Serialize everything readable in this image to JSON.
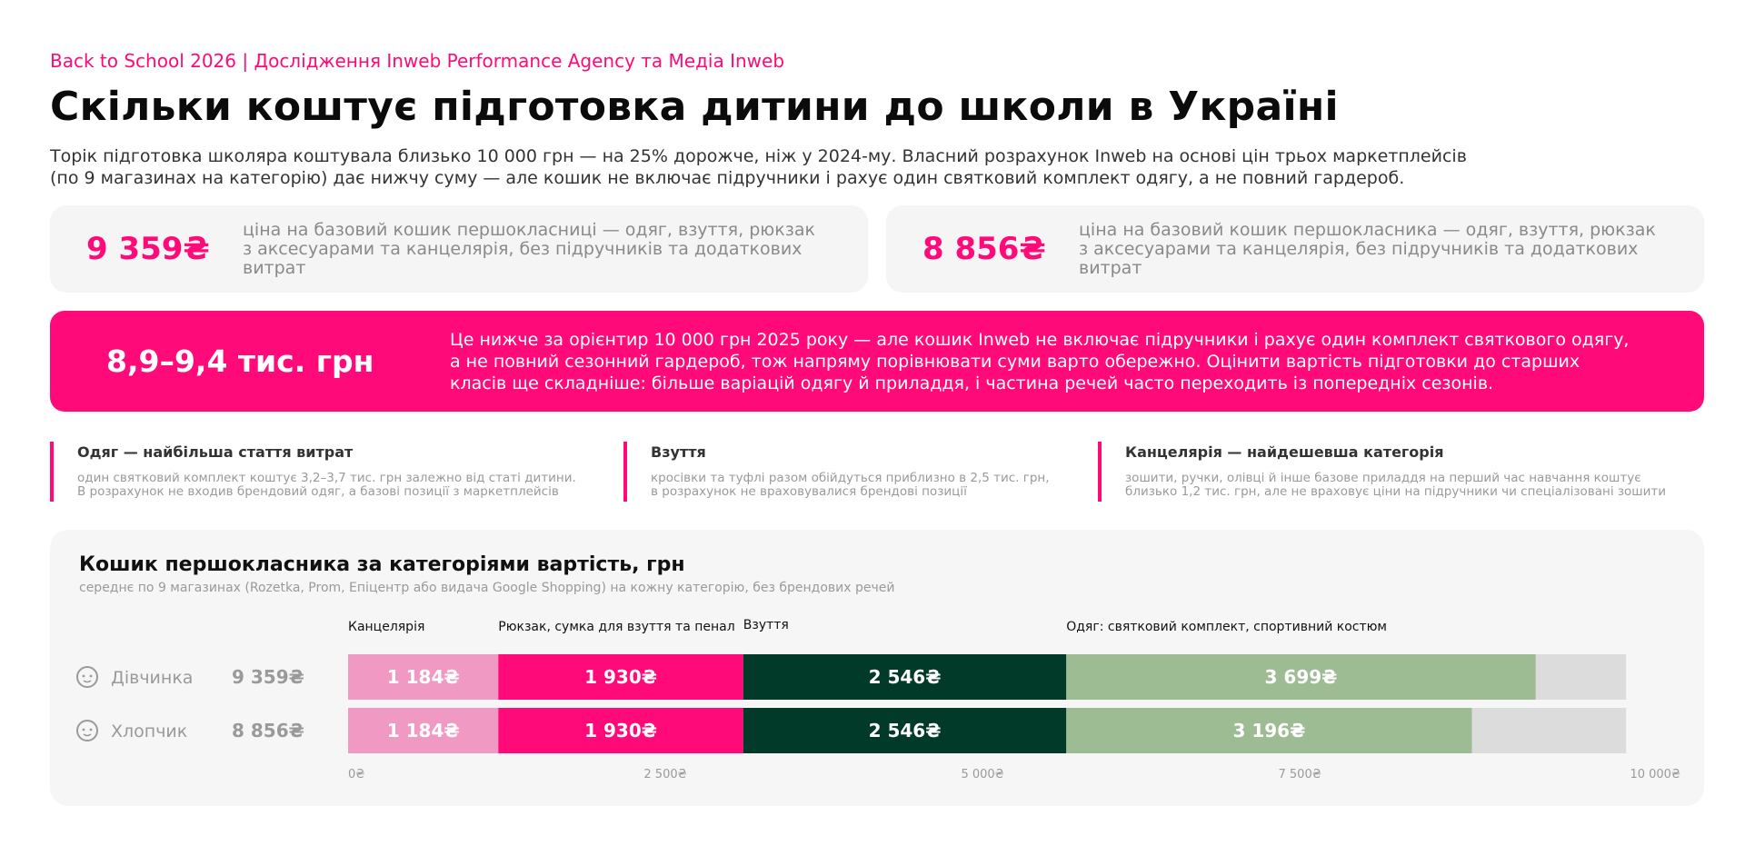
{
  "header": {
    "eyebrow": "Back to School 2026 | Дослідження Inweb Performance Agency та Медіа Inweb",
    "title": "Скільки коштує підготовка дитини до школи в Україні",
    "intro_line1": "Торік підготовка школяра коштувала близько 10 000 грн — на 25% дорожче, ніж у 2024-му. Власний розрахунок Inweb на основі цін трьох маркетплейсів",
    "intro_line2": "(по 9 магазинах на категорію) дає нижчу суму — але кошик не включає підручники і рахує один святковий комплект одягу, а не повний гардероб."
  },
  "kpis": {
    "girl": {
      "value": "9 359₴",
      "desc_line1": "ціна на базовий кошик першокласниці — одяг, взуття, рюкзак",
      "desc_line2": "з аксесуарами та канцелярія, без підручників та додаткових витрат"
    },
    "boy": {
      "value": "8 856₴",
      "desc_line1": "ціна на базовий кошик першокласника — одяг, взуття, рюкзак",
      "desc_line2": "з аксесуарами та канцелярія, без підручників та додаткових витрат"
    }
  },
  "banner": {
    "value": "8,9–9,4 тис. грн",
    "line1": "Це нижче за орієнтир 10 000 грн 2025 року — але кошик Inweb не включає підручники і рахує один комплект святкового одягу,",
    "line2": "а не повний сезонний гардероб, тож напряму порівнювати суми варто обережно. Оцінити вартість підготовки до старших",
    "line3": "класів ще складніше: більше варіацій одягу й приладдя, і частина речей часто переходить із попередніх сезонів."
  },
  "facts": [
    {
      "title": "Одяг — найбільша стаття витрат",
      "line1": "один святковий комплект коштує 3,2–3,7 тис. грн залежно від статі дитини.",
      "line2": "В розрахунок не входив брендовий одяг, а базові позиції з маркетплейсів"
    },
    {
      "title": "Взуття",
      "line1": "кросівки та туфлі разом обійдуться приблизно в 2,5 тис. грн,",
      "line2": "в розрахунок не враховувалися брендові позиції"
    },
    {
      "title": "Канцелярія — найдешевша категорія",
      "line1": "зошити, ручки, олівці й інше базове приладдя на перший час навчання коштує",
      "line2": "близько 1,2 тис. грн, але не враховує ціни на підручники чи спеціалізовані зошити"
    }
  ],
  "chart_card": {
    "title": "Кошик першокласника за категоріями вартість, грн",
    "subtitle": "середнє по 9 магазинах (Rozetka, Prom, Епіцентр або видача Google Shopping) на кожну категорію, без брендових речей"
  },
  "chart_data": {
    "type": "bar",
    "orientation": "horizontal",
    "stacked": true,
    "xlim": [
      0,
      10500
    ],
    "x_ticks": [
      {
        "value": 0,
        "label": "0₴"
      },
      {
        "value": 2500,
        "label": "2 500₴"
      },
      {
        "value": 5000,
        "label": "5 000₴"
      },
      {
        "value": 7500,
        "label": "7 500₴"
      },
      {
        "value": 10000,
        "label": "10 000₴"
      }
    ],
    "categories": [
      "Дівчинка",
      "Хлопчик"
    ],
    "category_icons": [
      "girl-face-icon",
      "boy-face-icon"
    ],
    "totals": [
      "9 359₴",
      "8 856₴"
    ],
    "segment_labels": [
      "Канцелярія",
      "Рюкзак, сумка для взуття та пенал",
      "Взуття",
      "Одяг: святковий комплект, спортивний костюм"
    ],
    "series": [
      {
        "name": "Канцелярія",
        "color": "#f099c2",
        "values": [
          1184,
          1184
        ],
        "labels": [
          "1 184₴",
          "1 184₴"
        ]
      },
      {
        "name": "Рюкзак, сумка для взуття та пенал",
        "color": "#ff0a78",
        "values": [
          1930,
          1930
        ],
        "labels": [
          "1 930₴",
          "1 930₴"
        ]
      },
      {
        "name": "Взуття",
        "color": "#013a28",
        "values": [
          2546,
          2546
        ],
        "labels": [
          "2 546₴",
          "2 546₴"
        ]
      },
      {
        "name": "Одяг: святковий комплект, спортивний костюм",
        "color": "#9ebc94",
        "values": [
          3699,
          3196
        ],
        "labels": [
          "3 699₴",
          "3 196₴"
        ]
      }
    ],
    "remainder_color": "#dcdcdc"
  }
}
